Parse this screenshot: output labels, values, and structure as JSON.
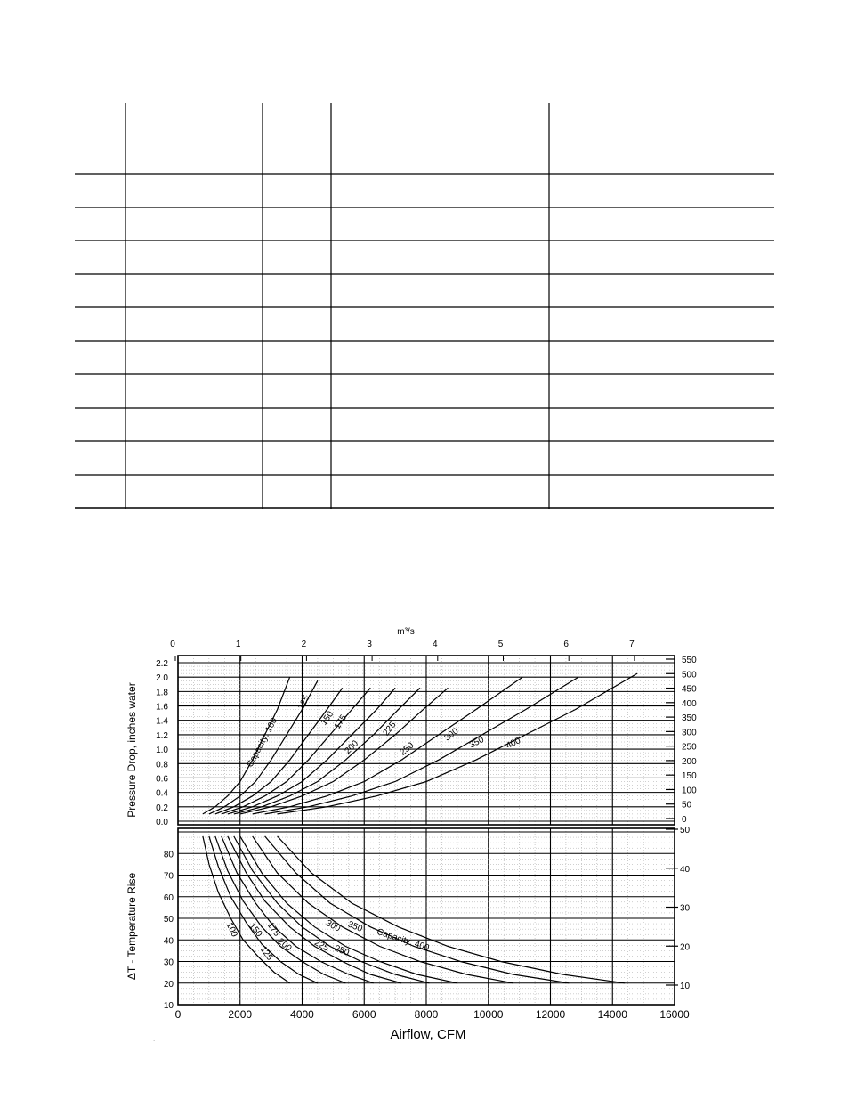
{
  "table": {
    "columns": 5,
    "rows": 10,
    "cells": []
  },
  "chart_data": [
    {
      "type": "line",
      "title": "",
      "xlabel": "Airflow, CFM",
      "ylabel": "Pressure Drop, inches water",
      "xlim": [
        0,
        16000
      ],
      "ylim": [
        0.0,
        2.2
      ],
      "x_ticks": [
        "0",
        "2000",
        "4000",
        "6000",
        "8000",
        "10000",
        "12000",
        "14000",
        "16000"
      ],
      "y_ticks": [
        "0.0",
        "0.2",
        "0.4",
        "0.6",
        "0.8",
        "1.0",
        "1.2",
        "1.4",
        "1.6",
        "1.8",
        "2.0",
        "2.2"
      ],
      "top_axis_label": "m³/s",
      "top_ticks": [
        "0",
        "1",
        "2",
        "3",
        "4",
        "5",
        "6",
        "7"
      ],
      "right_ticks": [
        "0",
        "50",
        "100",
        "150",
        "200",
        "250",
        "300",
        "350",
        "400",
        "450",
        "500",
        "550"
      ],
      "grid": true,
      "series": [
        {
          "name": "Capacity: 100",
          "label": "Capacity: 100",
          "x": [
            800,
            1200,
            1600,
            2000,
            2400,
            2800,
            3200,
            3600
          ],
          "y": [
            0.1,
            0.2,
            0.35,
            0.55,
            0.85,
            1.2,
            1.55,
            2.0
          ]
        },
        {
          "name": "125",
          "label": "125",
          "x": [
            1000,
            1500,
            2000,
            2500,
            3000,
            3500,
            4000,
            4500
          ],
          "y": [
            0.1,
            0.2,
            0.35,
            0.55,
            0.85,
            1.2,
            1.55,
            1.95
          ]
        },
        {
          "name": "150",
          "label": "150",
          "x": [
            1200,
            1800,
            2400,
            3000,
            3600,
            4200,
            4800,
            5300
          ],
          "y": [
            0.1,
            0.2,
            0.35,
            0.55,
            0.85,
            1.2,
            1.55,
            1.85
          ]
        },
        {
          "name": "175",
          "label": "175",
          "x": [
            1400,
            2100,
            2800,
            3500,
            4200,
            4900,
            5600,
            6200
          ],
          "y": [
            0.1,
            0.2,
            0.35,
            0.55,
            0.85,
            1.2,
            1.55,
            1.85
          ]
        },
        {
          "name": "200",
          "label": "200",
          "x": [
            1600,
            2400,
            3200,
            4000,
            4800,
            5600,
            6400,
            7000
          ],
          "y": [
            0.1,
            0.2,
            0.35,
            0.55,
            0.85,
            1.2,
            1.55,
            1.85
          ]
        },
        {
          "name": "225",
          "label": "225",
          "x": [
            1800,
            2700,
            3600,
            4500,
            5400,
            6300,
            7100,
            7800
          ],
          "y": [
            0.1,
            0.2,
            0.35,
            0.55,
            0.85,
            1.2,
            1.55,
            1.85
          ]
        },
        {
          "name": "250",
          "label": "250",
          "x": [
            2000,
            3000,
            4000,
            5000,
            6000,
            7000,
            7900,
            8700
          ],
          "y": [
            0.1,
            0.2,
            0.35,
            0.55,
            0.85,
            1.2,
            1.55,
            1.85
          ]
        },
        {
          "name": "300",
          "label": "300",
          "x": [
            2400,
            3600,
            4800,
            6000,
            7200,
            8400,
            9600,
            11100
          ],
          "y": [
            0.1,
            0.2,
            0.35,
            0.55,
            0.85,
            1.2,
            1.55,
            2.0
          ]
        },
        {
          "name": "350",
          "label": "350",
          "x": [
            2800,
            4200,
            5600,
            7000,
            8400,
            9800,
            11200,
            12900
          ],
          "y": [
            0.1,
            0.2,
            0.35,
            0.55,
            0.85,
            1.2,
            1.55,
            2.0
          ]
        },
        {
          "name": "400",
          "label": "400",
          "x": [
            3200,
            4800,
            6400,
            8000,
            9600,
            11200,
            12800,
            14800
          ],
          "y": [
            0.1,
            0.2,
            0.35,
            0.55,
            0.85,
            1.2,
            1.55,
            2.05
          ]
        }
      ]
    },
    {
      "type": "line",
      "title": "",
      "xlabel": "Airflow, CFM",
      "ylabel": "ΔT - Temperature Rise",
      "xlim": [
        0,
        16000
      ],
      "ylim": [
        10,
        90
      ],
      "y_ticks": [
        "10",
        "20",
        "30",
        "40",
        "50",
        "60",
        "70",
        "80"
      ],
      "right_ticks": [
        "10",
        "20",
        "30",
        "40",
        "50"
      ],
      "grid": true,
      "series": [
        {
          "name": "100",
          "label": "100",
          "x": [
            800,
            1000,
            1300,
            1700,
            2100,
            2600,
            3100,
            3600
          ],
          "y": [
            88,
            75,
            62,
            50,
            40,
            32,
            25,
            20
          ]
        },
        {
          "name": "125",
          "label": "125",
          "x": [
            1000,
            1300,
            1700,
            2200,
            2700,
            3300,
            3900,
            4500
          ],
          "y": [
            88,
            74,
            60,
            48,
            38,
            30,
            24,
            20
          ]
        },
        {
          "name": "150",
          "label": "150",
          "x": [
            1200,
            1600,
            2100,
            2700,
            3300,
            4000,
            4700,
            5400
          ],
          "y": [
            88,
            72,
            58,
            46,
            37,
            30,
            24,
            20
          ]
        },
        {
          "name": "175",
          "label": "175",
          "x": [
            1400,
            1900,
            2500,
            3100,
            3800,
            4600,
            5500,
            6300
          ],
          "y": [
            88,
            71,
            57,
            46,
            37,
            30,
            24,
            20
          ]
        },
        {
          "name": "200",
          "label": "200",
          "x": [
            1600,
            2200,
            2800,
            3600,
            4400,
            5300,
            6200,
            7200
          ],
          "y": [
            88,
            71,
            58,
            46,
            37,
            30,
            24,
            20
          ]
        },
        {
          "name": "225",
          "label": "225",
          "x": [
            1800,
            2400,
            3200,
            4000,
            4900,
            5900,
            7000,
            8100
          ],
          "y": [
            88,
            72,
            57,
            46,
            37,
            30,
            24,
            20
          ]
        },
        {
          "name": "250",
          "label": "250",
          "x": [
            2000,
            2700,
            3500,
            4400,
            5400,
            6500,
            7700,
            9000
          ],
          "y": [
            88,
            71,
            57,
            46,
            37,
            30,
            24,
            20
          ]
        },
        {
          "name": "300",
          "label": "300",
          "x": [
            2400,
            3200,
            4200,
            5300,
            6500,
            7800,
            9300,
            10800
          ],
          "y": [
            88,
            71,
            57,
            46,
            37,
            30,
            24,
            20
          ]
        },
        {
          "name": "350",
          "label": "350",
          "x": [
            2800,
            3800,
            4900,
            6200,
            7600,
            9100,
            10800,
            12600
          ],
          "y": [
            88,
            71,
            57,
            46,
            37,
            30,
            24,
            20
          ]
        },
        {
          "name": "Capacity: 400",
          "label": "Capacity: 400",
          "x": [
            3200,
            4300,
            5600,
            7100,
            8700,
            10400,
            12400,
            14400
          ],
          "y": [
            88,
            71,
            57,
            46,
            37,
            30,
            24,
            20
          ]
        }
      ]
    }
  ]
}
